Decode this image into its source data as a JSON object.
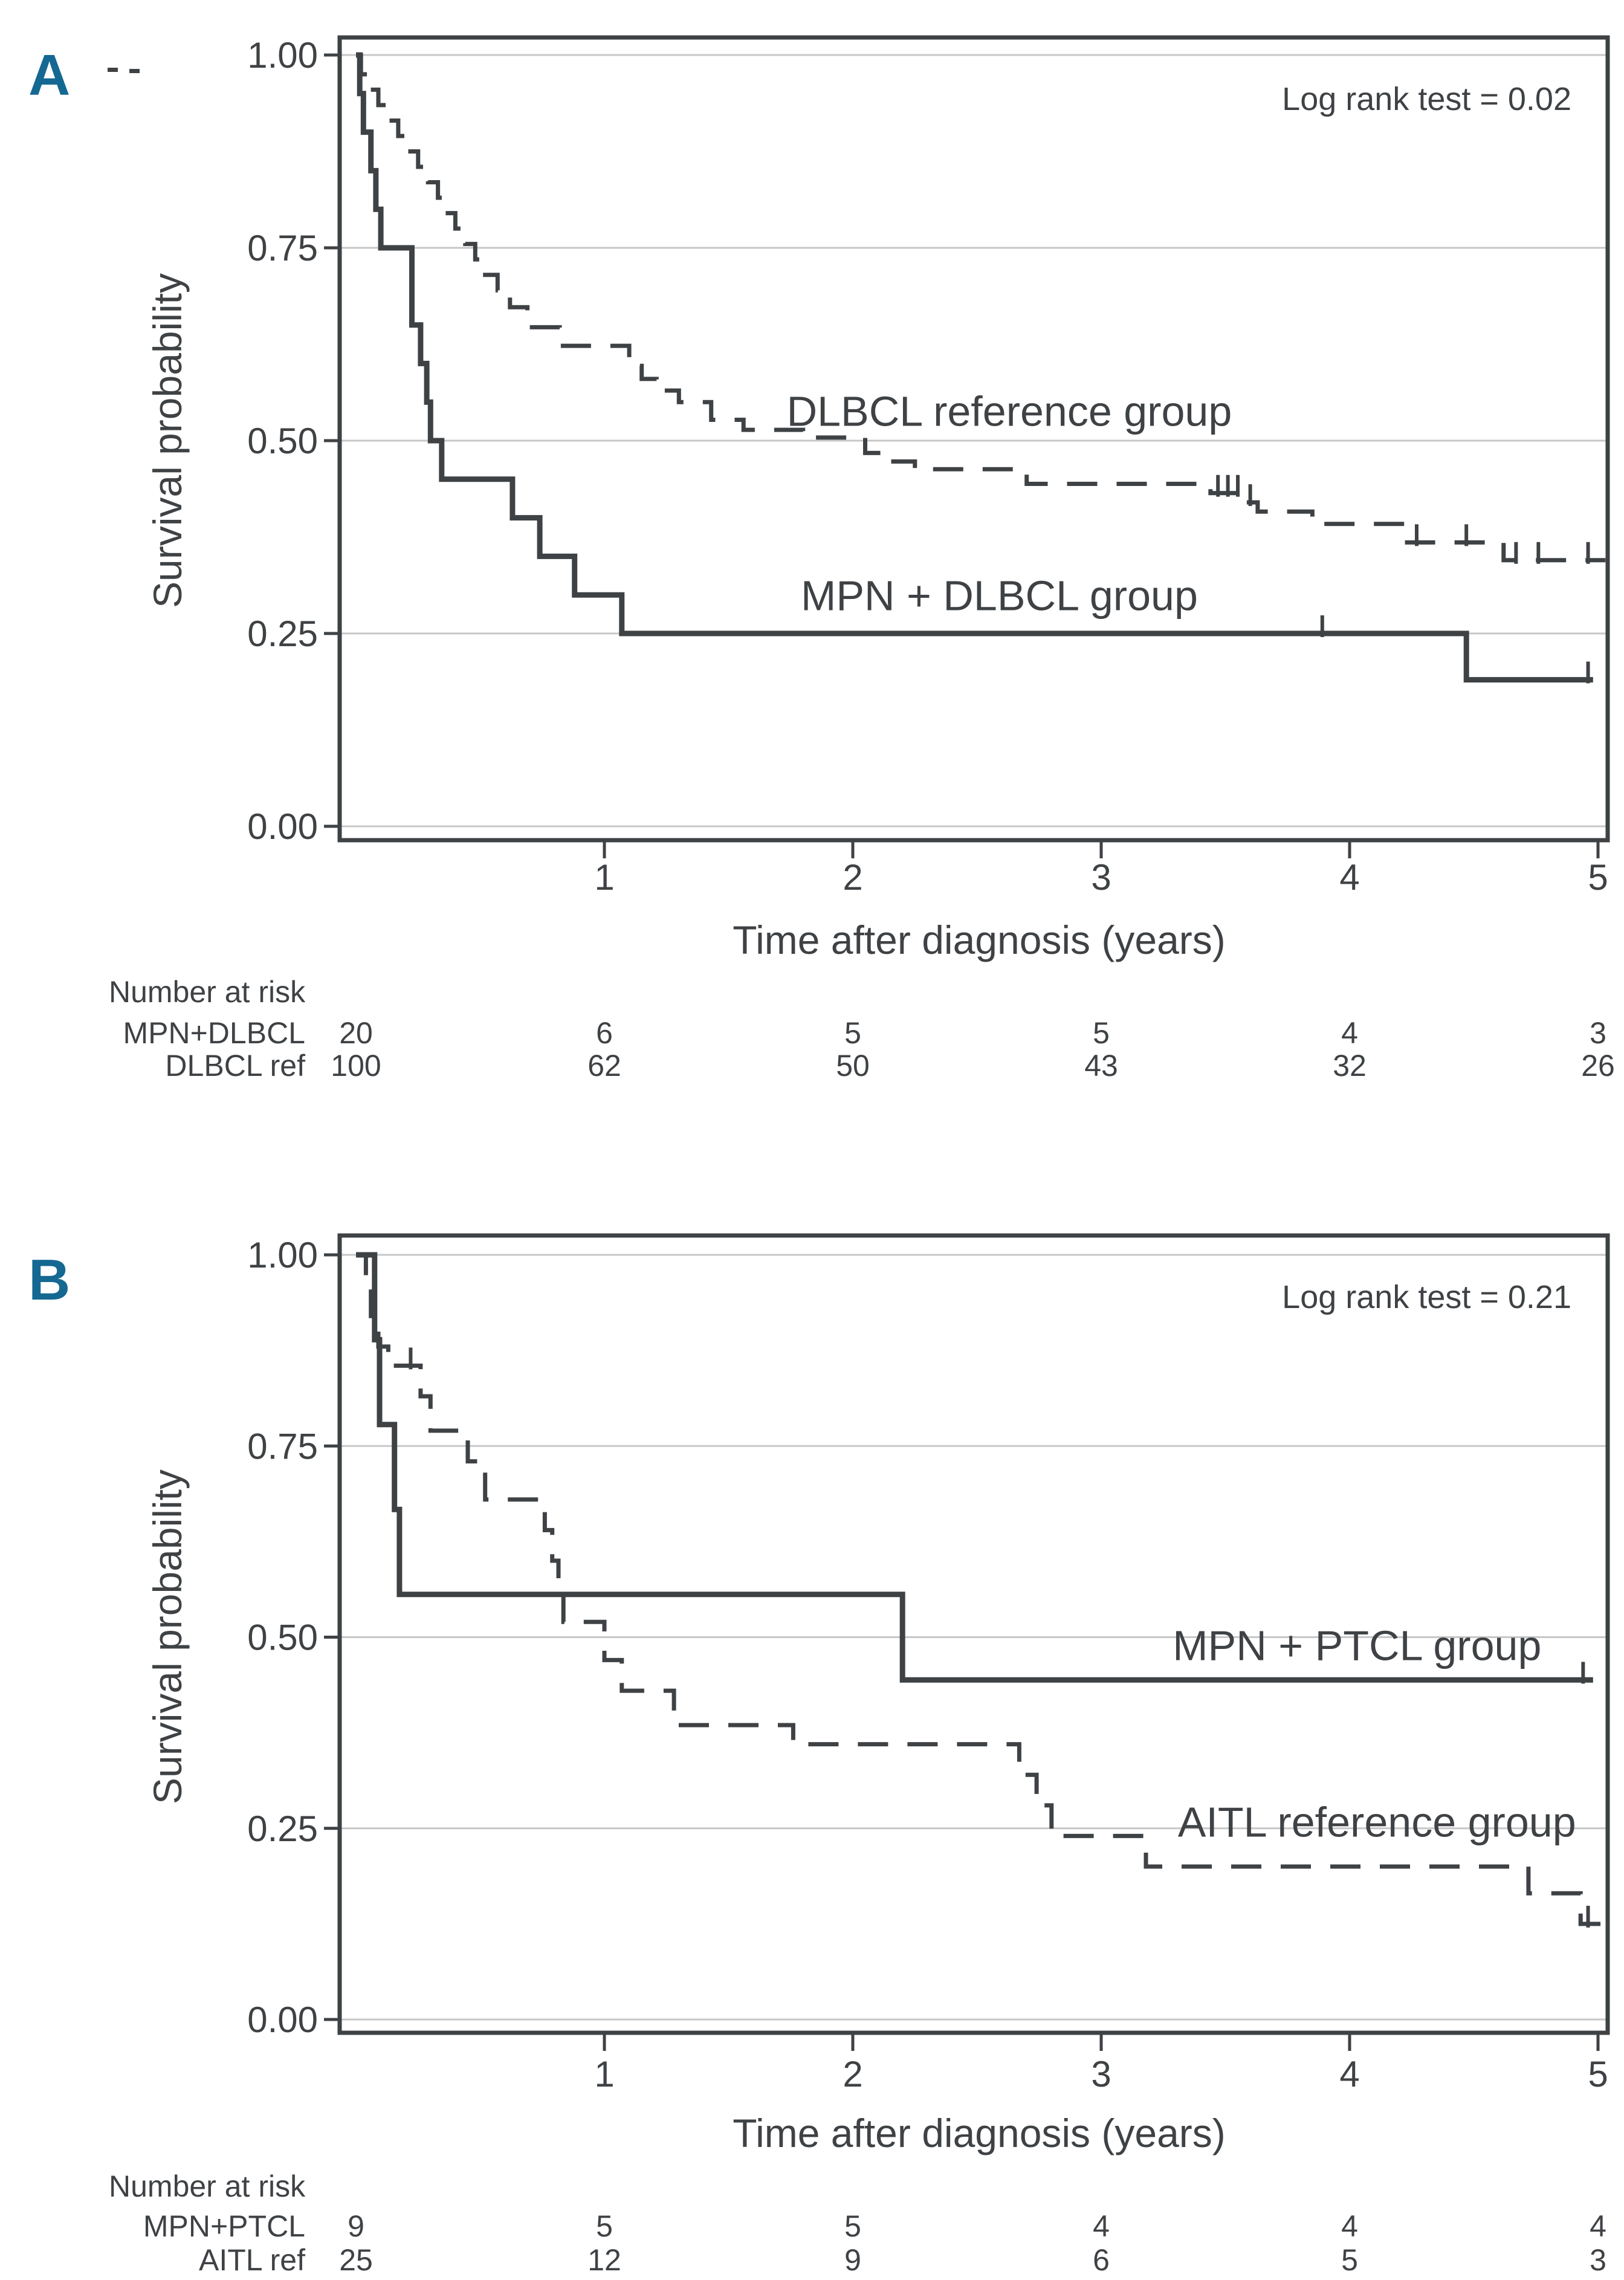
{
  "colors": {
    "accent_blue": "#146892",
    "ink": "#3f4245",
    "grid": "#c7c7c7",
    "background": "#ffffff"
  },
  "chart_data": [
    {
      "panel_label": "A",
      "type": "line",
      "subtype": "kaplan-meier-step",
      "annotation": "Log rank test = 0.02",
      "xlabel": "Time after diagnosis (years)",
      "ylabel": "Survival probability",
      "xlim": [
        0,
        5.05
      ],
      "ylim": [
        0,
        1
      ],
      "grid": "horizontal-only",
      "legend_position": "inline-labels",
      "xticks": [
        {
          "v": 1,
          "label": "1"
        },
        {
          "v": 2,
          "label": "2"
        },
        {
          "v": 3,
          "label": "3"
        },
        {
          "v": 4,
          "label": "4"
        },
        {
          "v": 5,
          "label": "5"
        }
      ],
      "yticks": [
        {
          "v": 1,
          "label": "1.00"
        },
        {
          "v": 0.75,
          "label": "0.75"
        },
        {
          "v": 0.5,
          "label": "0.50"
        },
        {
          "v": 0.25,
          "label": "0.25"
        },
        {
          "v": 0,
          "label": "0.00"
        }
      ],
      "series": [
        {
          "name": "DLBCL reference group",
          "line": "dashed",
          "label_anchor": {
            "x": 2.63,
            "y": 0.538
          },
          "steps": [
            [
              0,
              1.0
            ],
            [
              0.02,
              0.975
            ],
            [
              0.05,
              0.955
            ],
            [
              0.09,
              0.935
            ],
            [
              0.13,
              0.915
            ],
            [
              0.17,
              0.895
            ],
            [
              0.21,
              0.875
            ],
            [
              0.25,
              0.855
            ],
            [
              0.29,
              0.835
            ],
            [
              0.33,
              0.815
            ],
            [
              0.36,
              0.795
            ],
            [
              0.4,
              0.775
            ],
            [
              0.44,
              0.755
            ],
            [
              0.48,
              0.735
            ],
            [
              0.52,
              0.715
            ],
            [
              0.57,
              0.695
            ],
            [
              0.62,
              0.673
            ],
            [
              0.69,
              0.647
            ],
            [
              0.82,
              0.623
            ],
            [
              1.1,
              0.597
            ],
            [
              1.15,
              0.58
            ],
            [
              1.21,
              0.565
            ],
            [
              1.3,
              0.55
            ],
            [
              1.43,
              0.527
            ],
            [
              1.56,
              0.514
            ],
            [
              1.8,
              0.504
            ],
            [
              2.05,
              0.484
            ],
            [
              2.12,
              0.473
            ],
            [
              2.25,
              0.463
            ],
            [
              2.7,
              0.444
            ],
            [
              3.44,
              0.432
            ],
            [
              3.57,
              0.42
            ],
            [
              3.63,
              0.408
            ],
            [
              3.85,
              0.392
            ],
            [
              4.22,
              0.368
            ],
            [
              4.62,
              0.345
            ],
            [
              5.03,
              0.345
            ]
          ],
          "censors": [
            [
              3.47,
              0.432
            ],
            [
              3.51,
              0.432
            ],
            [
              3.55,
              0.432
            ],
            [
              3.6,
              0.42
            ],
            [
              4.27,
              0.368
            ],
            [
              4.47,
              0.368
            ],
            [
              4.67,
              0.345
            ],
            [
              4.76,
              0.345
            ],
            [
              4.96,
              0.345
            ]
          ]
        },
        {
          "name": "MPN + DLBCL group",
          "line": "solid",
          "label_anchor": {
            "x": 2.59,
            "y": 0.299
          },
          "steps": [
            [
              0,
              1.0
            ],
            [
              0.015,
              0.95
            ],
            [
              0.03,
              0.9
            ],
            [
              0.06,
              0.85
            ],
            [
              0.08,
              0.8
            ],
            [
              0.1,
              0.75
            ],
            [
              0.225,
              0.65
            ],
            [
              0.26,
              0.6
            ],
            [
              0.285,
              0.55
            ],
            [
              0.3,
              0.5
            ],
            [
              0.345,
              0.45
            ],
            [
              0.63,
              0.4
            ],
            [
              0.74,
              0.35
            ],
            [
              0.88,
              0.3
            ],
            [
              1.07,
              0.25
            ],
            [
              4.47,
              0.19
            ],
            [
              4.98,
              0.19
            ]
          ],
          "censors": [
            [
              3.89,
              0.25
            ],
            [
              4.96,
              0.19
            ]
          ]
        }
      ],
      "risk_table": {
        "title": "Number at risk",
        "time_points": [
          0,
          1,
          2,
          3,
          4,
          5
        ],
        "rows": [
          {
            "label": "MPN+DLBCL",
            "values": [
              "20",
              "6",
              "5",
              "5",
              "4",
              "3"
            ]
          },
          {
            "label": "DLBCL ref",
            "values": [
              "100",
              "62",
              "50",
              "43",
              "32",
              "26"
            ]
          }
        ]
      }
    },
    {
      "panel_label": "B",
      "type": "line",
      "subtype": "kaplan-meier-step",
      "annotation": "Log rank test = 0.21",
      "xlabel": "Time after diagnosis (years)",
      "ylabel": "Survival probability",
      "xlim": [
        0,
        5.05
      ],
      "ylim": [
        0,
        1
      ],
      "grid": "horizontal-only",
      "legend_position": "inline-labels",
      "xticks": [
        {
          "v": 1,
          "label": "1"
        },
        {
          "v": 2,
          "label": "2"
        },
        {
          "v": 3,
          "label": "3"
        },
        {
          "v": 4,
          "label": "4"
        },
        {
          "v": 5,
          "label": "5"
        }
      ],
      "yticks": [
        {
          "v": 1,
          "label": "1.00"
        },
        {
          "v": 0.75,
          "label": "0.75"
        },
        {
          "v": 0.5,
          "label": "0.50"
        },
        {
          "v": 0.25,
          "label": "0.25"
        },
        {
          "v": 0,
          "label": "0.00"
        }
      ],
      "series": [
        {
          "name": "AITL reference group",
          "line": "dashed",
          "label_anchor": {
            "x": 4.11,
            "y": 0.258
          },
          "steps": [
            [
              0,
              1.0
            ],
            [
              0.04,
              0.96
            ],
            [
              0.06,
              0.92
            ],
            [
              0.09,
              0.88
            ],
            [
              0.13,
              0.855
            ],
            [
              0.26,
              0.815
            ],
            [
              0.3,
              0.77
            ],
            [
              0.45,
              0.73
            ],
            [
              0.52,
              0.68
            ],
            [
              0.76,
              0.64
            ],
            [
              0.79,
              0.6
            ],
            [
              0.815,
              0.56
            ],
            [
              0.835,
              0.52
            ],
            [
              1.0,
              0.47
            ],
            [
              1.07,
              0.43
            ],
            [
              1.28,
              0.385
            ],
            [
              1.76,
              0.36
            ],
            [
              2.67,
              0.32
            ],
            [
              2.74,
              0.28
            ],
            [
              2.8,
              0.24
            ],
            [
              3.18,
              0.2
            ],
            [
              4.72,
              0.165
            ],
            [
              4.93,
              0.125
            ],
            [
              5.03,
              0.125
            ]
          ],
          "censors": [
            [
              0.22,
              0.855
            ],
            [
              4.96,
              0.125
            ]
          ]
        },
        {
          "name": "MPN + PTCL group",
          "line": "solid",
          "label_anchor": {
            "x": 4.03,
            "y": 0.489
          },
          "steps": [
            [
              0,
              1.0
            ],
            [
              0.075,
              0.889
            ],
            [
              0.095,
              0.778
            ],
            [
              0.155,
              0.667
            ],
            [
              0.175,
              0.556
            ],
            [
              2.2,
              0.444
            ],
            [
              4.98,
              0.444
            ]
          ],
          "censors": [
            [
              4.94,
              0.444
            ]
          ]
        }
      ],
      "risk_table": {
        "title": "Number at risk",
        "time_points": [
          0,
          1,
          2,
          3,
          4,
          5
        ],
        "rows": [
          {
            "label": "MPN+PTCL",
            "values": [
              "9",
              "5",
              "5",
              "4",
              "4",
              "4"
            ]
          },
          {
            "label": "AITL ref",
            "values": [
              "25",
              "12",
              "9",
              "6",
              "5",
              "3"
            ]
          }
        ]
      }
    }
  ]
}
